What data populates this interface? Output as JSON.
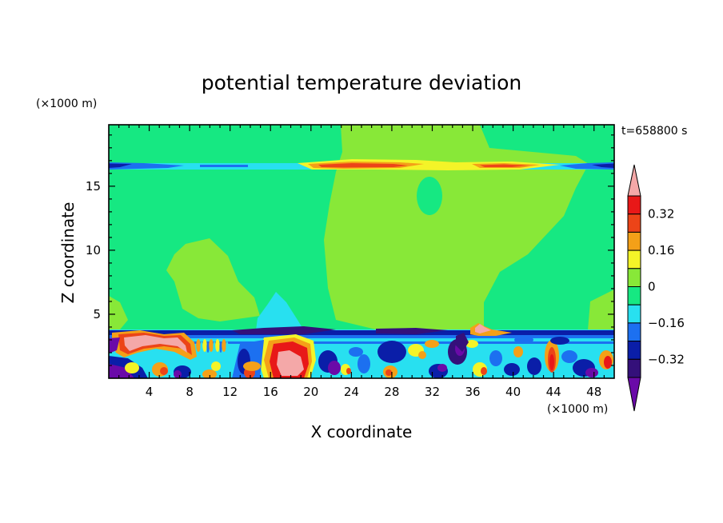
{
  "chart_data": {
    "type": "heatmap",
    "title": "potential temperature deviation",
    "xlabel": "X coordinate",
    "ylabel": "Z coordinate",
    "x_unit": "(×1000 m)",
    "y_unit": "(×1000 m)",
    "time_label": "t=658800 s",
    "xlim": [
      0,
      50
    ],
    "ylim": [
      0,
      19.8
    ],
    "x_ticks": [
      4,
      8,
      12,
      16,
      20,
      24,
      28,
      32,
      36,
      40,
      44,
      48
    ],
    "y_ticks": [
      5,
      10,
      15
    ],
    "colorbar": {
      "levels": [
        -0.4,
        -0.32,
        -0.24,
        -0.16,
        -0.08,
        0,
        0.08,
        0.16,
        0.24,
        0.32,
        0.4
      ],
      "tick_labels": [
        "0.32",
        "0.16",
        "0",
        "−0.16",
        "−0.32"
      ],
      "tick_values": [
        0.32,
        0.16,
        0,
        -0.16,
        -0.32
      ],
      "colors": [
        "#6a0aa8",
        "#34107a",
        "#0a1ea8",
        "#1c70f0",
        "#28e0f0",
        "#16e882",
        "#88e838",
        "#f4f428",
        "#f4a018",
        "#ec4418",
        "#e81818",
        "#f4a8a8"
      ]
    },
    "fields": {
      "background_upper": 0.0,
      "background_central": 0.04,
      "tropopause_layer": {
        "z": 16.8,
        "values": [
          "-0.32 at edges",
          "+0.32 near x=24-28 and x=38-40"
        ]
      },
      "boundary_layer": {
        "z_top": 3.4,
        "range": [
          -0.4,
          0.4
        ]
      }
    }
  }
}
